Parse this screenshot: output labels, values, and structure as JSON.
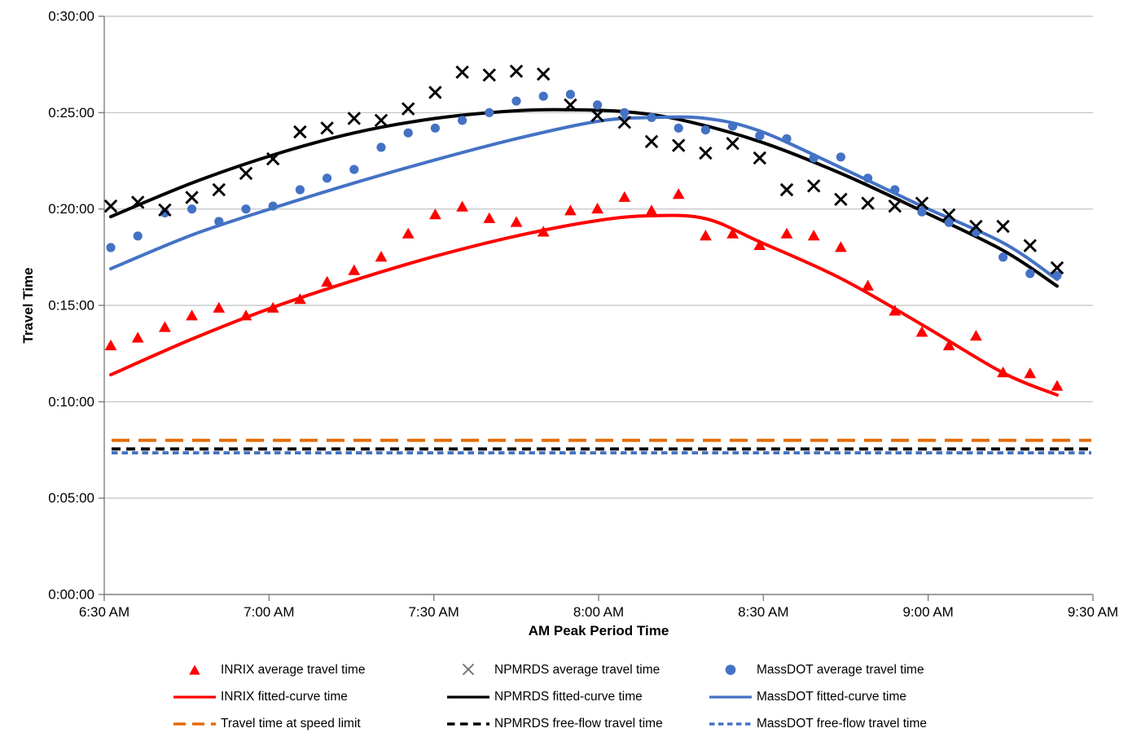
{
  "chart_data": {
    "type": "scatter",
    "title": "",
    "background_color": "#FFFFFF",
    "grid": {
      "horizontal": true,
      "vertical": false,
      "gridline_color": "#BFBFBF",
      "axis_color": "#7F7F7F"
    },
    "x_axis": {
      "title": "AM Peak Period Time",
      "tick_labels": [
        "6:30 AM",
        "7:00 AM",
        "7:30 AM",
        "8:00 AM",
        "8:30 AM",
        "9:00 AM",
        "9:30 AM"
      ],
      "start": "6:30 AM",
      "end": "9:30 AM",
      "point_interval_minutes": 5,
      "points_start": "6:30 AM",
      "points_end": "9:25 AM"
    },
    "y_axis": {
      "title": "Travel Time",
      "tick_labels": [
        "0:30:00",
        "0:25:00",
        "0:20:00",
        "0:15:00",
        "0:10:00",
        "0:05:00",
        "0:00:00"
      ],
      "range_minutes": [
        0,
        30
      ],
      "tick_interval_minutes": 5,
      "units": "h:mm:ss travel time, values below given in decimal minutes"
    },
    "legend": {
      "position": "bottom",
      "columns": 3
    },
    "series": [
      {
        "id": "inrix_avg",
        "label": "INRIX average travel time",
        "kind": "scatter",
        "marker": "triangle",
        "color": "#FF0000",
        "values": [
          12.9,
          13.3,
          13.85,
          14.45,
          14.85,
          14.45,
          14.85,
          15.3,
          16.2,
          16.8,
          17.5,
          18.7,
          19.7,
          20.1,
          19.5,
          19.3,
          18.8,
          19.9,
          20.0,
          20.6,
          19.9,
          20.75,
          18.6,
          18.7,
          18.1,
          18.7,
          18.6,
          18.0,
          16.0,
          14.7,
          13.6,
          12.9,
          13.4,
          11.5,
          11.45,
          10.8
        ]
      },
      {
        "id": "npmrds_avg",
        "label": "NPMRDS average travel time",
        "kind": "scatter",
        "marker": "x",
        "color": "#000000",
        "values": [
          20.15,
          20.35,
          19.95,
          20.6,
          21.0,
          21.85,
          22.6,
          24.0,
          24.2,
          24.7,
          24.6,
          25.2,
          26.05,
          27.1,
          26.95,
          27.15,
          27.0,
          25.4,
          24.85,
          24.5,
          23.5,
          23.3,
          22.9,
          23.4,
          22.65,
          21.0,
          21.2,
          20.5,
          20.3,
          20.15,
          20.3,
          19.7,
          19.1,
          19.1,
          18.1,
          16.95
        ]
      },
      {
        "id": "massdot_avg",
        "label": "MassDOT average travel time",
        "kind": "scatter",
        "marker": "circle",
        "color": "#4472C4",
        "values": [
          18.0,
          18.6,
          19.8,
          20.0,
          19.35,
          20.0,
          20.15,
          21.0,
          21.6,
          22.05,
          23.2,
          23.95,
          24.2,
          24.6,
          25.0,
          25.6,
          25.85,
          25.95,
          25.4,
          25.0,
          24.75,
          24.2,
          24.1,
          24.3,
          23.8,
          23.65,
          22.65,
          22.7,
          21.6,
          21.0,
          19.85,
          19.3,
          18.8,
          17.5,
          16.65,
          16.55
        ]
      },
      {
        "id": "inrix_fit",
        "label": "INRIX fitted-curve time",
        "kind": "curve",
        "color": "#FF0000",
        "points": [
          [
            0,
            11.4
          ],
          [
            15,
            13.25
          ],
          [
            30,
            14.9
          ],
          [
            45,
            16.3
          ],
          [
            60,
            17.55
          ],
          [
            75,
            18.6
          ],
          [
            90,
            19.4
          ],
          [
            100,
            19.65
          ],
          [
            110,
            19.5
          ],
          [
            120,
            18.3
          ],
          [
            135,
            16.4
          ],
          [
            150,
            14.0
          ],
          [
            165,
            11.5
          ],
          [
            175,
            10.35
          ]
        ]
      },
      {
        "id": "npmrds_fit",
        "label": "NPMRDS fitted-curve time",
        "kind": "curve",
        "color": "#000000",
        "points": [
          [
            0,
            19.6
          ],
          [
            15,
            21.35
          ],
          [
            30,
            22.8
          ],
          [
            45,
            23.95
          ],
          [
            60,
            24.7
          ],
          [
            75,
            25.1
          ],
          [
            85,
            25.15
          ],
          [
            95,
            25.05
          ],
          [
            105,
            24.65
          ],
          [
            120,
            23.5
          ],
          [
            135,
            21.85
          ],
          [
            150,
            19.9
          ],
          [
            165,
            17.85
          ],
          [
            175,
            16.0
          ]
        ]
      },
      {
        "id": "massdot_fit",
        "label": "MassDOT fitted-curve time",
        "kind": "curve",
        "color": "#4472C4",
        "points": [
          [
            0,
            16.9
          ],
          [
            15,
            18.65
          ],
          [
            30,
            20.05
          ],
          [
            45,
            21.35
          ],
          [
            60,
            22.55
          ],
          [
            75,
            23.65
          ],
          [
            90,
            24.55
          ],
          [
            100,
            24.75
          ],
          [
            110,
            24.7
          ],
          [
            120,
            24.05
          ],
          [
            135,
            22.15
          ],
          [
            150,
            20.15
          ],
          [
            165,
            18.25
          ],
          [
            175,
            16.35
          ]
        ]
      },
      {
        "id": "speed_limit",
        "label": "Travel time at speed limit",
        "kind": "hline",
        "color": "#E36C09",
        "value_minutes": 8.0,
        "dash": [
          22,
          11
        ]
      },
      {
        "id": "npmrds_ff",
        "label": "NPMRDS free-flow travel time",
        "kind": "hline",
        "color": "#000000",
        "value_minutes": 7.55,
        "dash": [
          11,
          7
        ]
      },
      {
        "id": "massdot_ff",
        "label": "MassDOT free-flow travel time",
        "kind": "hline",
        "color": "#4472C4",
        "value_minutes": 7.35,
        "dash": [
          7.5,
          5
        ]
      }
    ]
  }
}
